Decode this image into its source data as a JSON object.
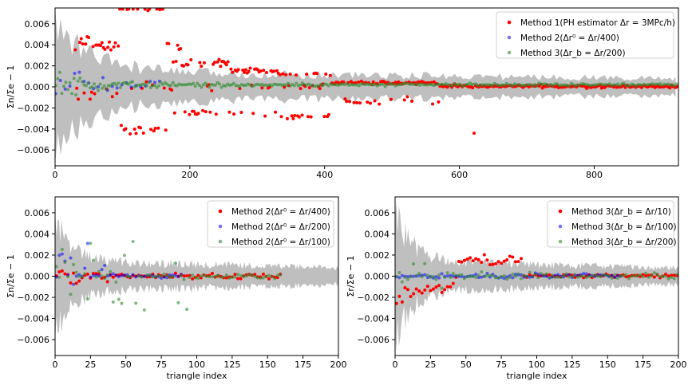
{
  "chart_data": [
    {
      "type": "scatter",
      "panel": "top",
      "xlim": [
        0,
        925
      ],
      "ylim": [
        -0.0075,
        0.0075
      ],
      "xticks": [
        0,
        200,
        400,
        600,
        800
      ],
      "yticks": [
        -0.006,
        -0.004,
        -0.002,
        0.0,
        0.002,
        0.004,
        0.006
      ],
      "xtick_labels": [
        "0",
        "200",
        "400",
        "600",
        "800"
      ],
      "ytick_labels": [
        "−0.006",
        "−0.004",
        "−0.002",
        "0.000",
        "0.002",
        "0.004",
        "0.006"
      ],
      "xlabel": "",
      "ylabel": "Σn/Σe − 1",
      "legend_position": "top-right",
      "band": {
        "color": "#bfbfbf",
        "note": "shaded uncertainty envelope around zero"
      },
      "series": [
        {
          "name": "Method 1(PH estimator Δr = 3MPc/h)",
          "color": "#ff0000",
          "opacity": 1.0,
          "gen": "top_m1"
        },
        {
          "name": "Method 2(Δr⁰ = Δr/400)",
          "color": "#0000ff",
          "opacity": 0.55,
          "gen": "top_m2"
        },
        {
          "name": "Method 3(Δr_b = Δr/200)",
          "color": "#2e8b2e",
          "opacity": 0.6,
          "gen": "top_m3"
        }
      ]
    },
    {
      "type": "scatter",
      "panel": "bottom-left",
      "xlim": [
        0,
        200
      ],
      "ylim": [
        -0.0075,
        0.0075
      ],
      "xticks": [
        0,
        25,
        50,
        75,
        100,
        125,
        150,
        175,
        200
      ],
      "yticks": [
        -0.006,
        -0.004,
        -0.002,
        0.0,
        0.002,
        0.004,
        0.006
      ],
      "xtick_labels": [
        "0",
        "25",
        "50",
        "75",
        "100",
        "125",
        "150",
        "175",
        "200"
      ],
      "ytick_labels": [
        "−0.006",
        "−0.004",
        "−0.002",
        "0.000",
        "0.002",
        "0.004",
        "0.006"
      ],
      "xlabel": "triangle index",
      "ylabel": "Σn/Σe − 1",
      "legend_position": "top-right",
      "band": {
        "color": "#bfbfbf",
        "note": "shaded uncertainty envelope around zero"
      },
      "series": [
        {
          "name": "Method 2(Δr⁰ = Δr/400)",
          "color": "#ff0000",
          "opacity": 1.0,
          "gen": "bl_s1"
        },
        {
          "name": "Method 2(Δr⁰ = Δr/200)",
          "color": "#0000ff",
          "opacity": 0.55,
          "gen": "bl_s2"
        },
        {
          "name": "Method 2(Δr⁰ = Δr/100)",
          "color": "#2e8b2e",
          "opacity": 0.6,
          "gen": "bl_s3"
        }
      ]
    },
    {
      "type": "scatter",
      "panel": "bottom-right",
      "xlim": [
        0,
        200
      ],
      "ylim": [
        -0.0075,
        0.0075
      ],
      "xticks": [
        0,
        25,
        50,
        75,
        100,
        125,
        150,
        175,
        200
      ],
      "yticks": [
        -0.006,
        -0.004,
        -0.002,
        0.0,
        0.002,
        0.004,
        0.006
      ],
      "xtick_labels": [
        "0",
        "25",
        "50",
        "75",
        "100",
        "125",
        "150",
        "175",
        "200"
      ],
      "ytick_labels": [
        "−0.006",
        "−0.004",
        "−0.002",
        "0.000",
        "0.002",
        "0.004",
        "0.006"
      ],
      "xlabel": "triangle index",
      "ylabel": "Σr/Σe − 1",
      "legend_position": "top-right",
      "band": {
        "color": "#bfbfbf",
        "note": "shaded uncertainty envelope around zero"
      },
      "series": [
        {
          "name": "Method 3(Δr_b = Δr/10)",
          "color": "#ff0000",
          "opacity": 1.0,
          "gen": "br_s1"
        },
        {
          "name": "Method 3(Δr_b = Δr/100)",
          "color": "#0000ff",
          "opacity": 0.55,
          "gen": "br_s2"
        },
        {
          "name": "Method 3(Δr_b = Δr/200)",
          "color": "#2e8b2e",
          "opacity": 0.6,
          "gen": "br_s3"
        }
      ]
    }
  ]
}
